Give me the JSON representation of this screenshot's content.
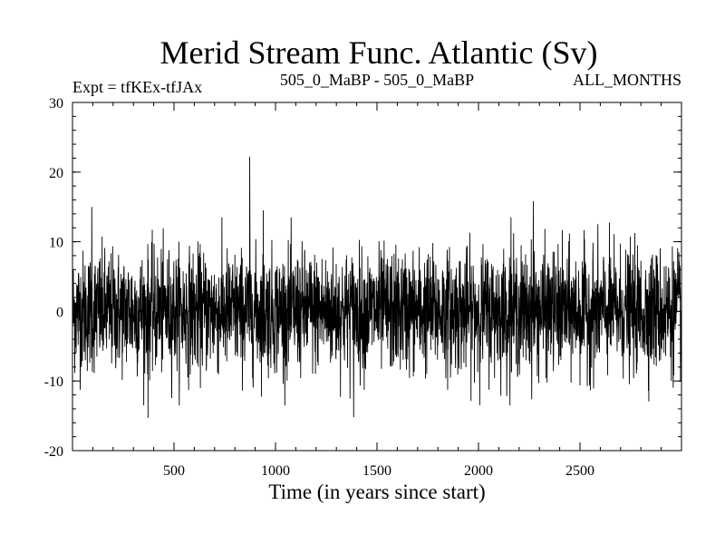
{
  "chart_data": {
    "type": "line",
    "title": "Merid Stream Func. Atlantic (Sv)",
    "subtitle_left": "Expt = tfKEx-tfJAx",
    "subtitle_center": "505_0_MaBP - 505_0_MaBP",
    "subtitle_right": "ALL_MONTHS",
    "xlabel": "Time (in years since start)",
    "ylabel": "",
    "xlim": [
      0,
      3000
    ],
    "ylim": [
      -20,
      30
    ],
    "x_ticks_major": [
      500,
      1000,
      1500,
      2000,
      2500
    ],
    "x_tick_labels": [
      "500",
      "1000",
      "1500",
      "2000",
      "2500"
    ],
    "x_minor_step": 100,
    "y_ticks_major": [
      -20,
      -10,
      0,
      10,
      20,
      30
    ],
    "y_tick_labels": [
      "-20",
      "-10",
      "0",
      "10",
      "20",
      "30"
    ],
    "y_minor_step": 2,
    "grid": false,
    "line_color": "#000000",
    "series_approx": {
      "x_start": 1,
      "x_end": 3000,
      "mean": 0,
      "std": 4.3,
      "highlighted_points": [
        {
          "x": 873,
          "y": 22.2
        },
        {
          "x": 372,
          "y": -15.3
        },
        {
          "x": 1385,
          "y": -15.2
        },
        {
          "x": 2270,
          "y": 15.8
        },
        {
          "x": 95,
          "y": 15.0
        },
        {
          "x": 2160,
          "y": 13.5
        },
        {
          "x": 940,
          "y": 14.5
        }
      ]
    }
  }
}
